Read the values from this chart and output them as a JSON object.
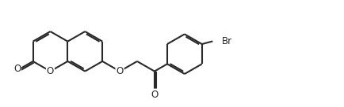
{
  "background_color": "#ffffff",
  "line_color": "#2a2a2a",
  "line_width": 1.5,
  "figsize": [
    4.35,
    1.36
  ],
  "dpi": 100,
  "R": 0.28,
  "of": 0.022,
  "xlim": [
    0.0,
    4.8
  ],
  "ylim": [
    0.05,
    1.15
  ]
}
